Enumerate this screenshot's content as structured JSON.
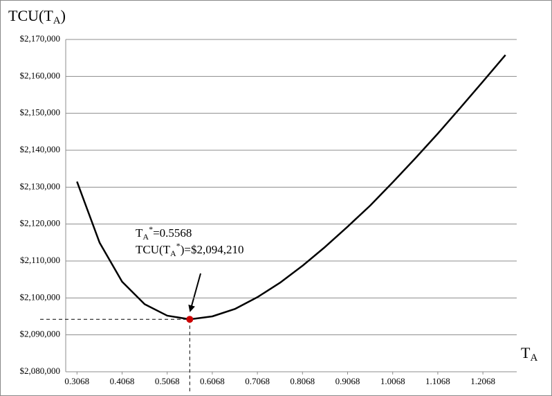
{
  "chart_data": {
    "type": "line",
    "y_label": [
      "TCU(T",
      "A",
      ")"
    ],
    "x_label": [
      "T",
      "A"
    ],
    "annotation": {
      "x": 0.5568,
      "y": 2094210,
      "line1": [
        "T",
        "A",
        "*",
        "=0.5568"
      ],
      "line2": [
        "TCU(T",
        "A",
        "*",
        ")=$2,094,210"
      ],
      "color": "#cc0000"
    },
    "x": [
      0.3068,
      0.3568,
      0.4068,
      0.4568,
      0.5068,
      0.5568,
      0.6068,
      0.6568,
      0.7068,
      0.7568,
      0.8068,
      0.8568,
      0.9068,
      0.9568,
      1.0068,
      1.0568,
      1.1068,
      1.1568,
      1.2068,
      1.2568
    ],
    "series": [
      {
        "name": "TCU",
        "color": "#000000",
        "values": [
          2131500,
          2115000,
          2104400,
          2098300,
          2095200,
          2094210,
          2095000,
          2097000,
          2100200,
          2104100,
          2108700,
          2113800,
          2119300,
          2125000,
          2131300,
          2137800,
          2144500,
          2151500,
          2158600,
          2165800
        ]
      }
    ],
    "xlim": [
      0.2818,
      1.2818
    ],
    "xticks": [
      0.3068,
      0.4068,
      0.5068,
      0.6068,
      0.7068,
      0.8068,
      0.9068,
      1.0068,
      1.1068,
      1.2068
    ],
    "ylim": [
      2080000,
      2170000
    ],
    "yticks": [
      {
        "value": 2080000,
        "label": "$2,080,000"
      },
      {
        "value": 2090000,
        "label": "$2,090,000"
      },
      {
        "value": 2100000,
        "label": "$2,100,000"
      },
      {
        "value": 2110000,
        "label": "$2,110,000"
      },
      {
        "value": 2120000,
        "label": "$2,120,000"
      },
      {
        "value": 2130000,
        "label": "$2,130,000"
      },
      {
        "value": 2140000,
        "label": "$2,140,000"
      },
      {
        "value": 2150000,
        "label": "$2,150,000"
      },
      {
        "value": 2160000,
        "label": "$2,160,000"
      },
      {
        "value": 2170000,
        "label": "$2,170,000"
      }
    ],
    "grid": true
  }
}
